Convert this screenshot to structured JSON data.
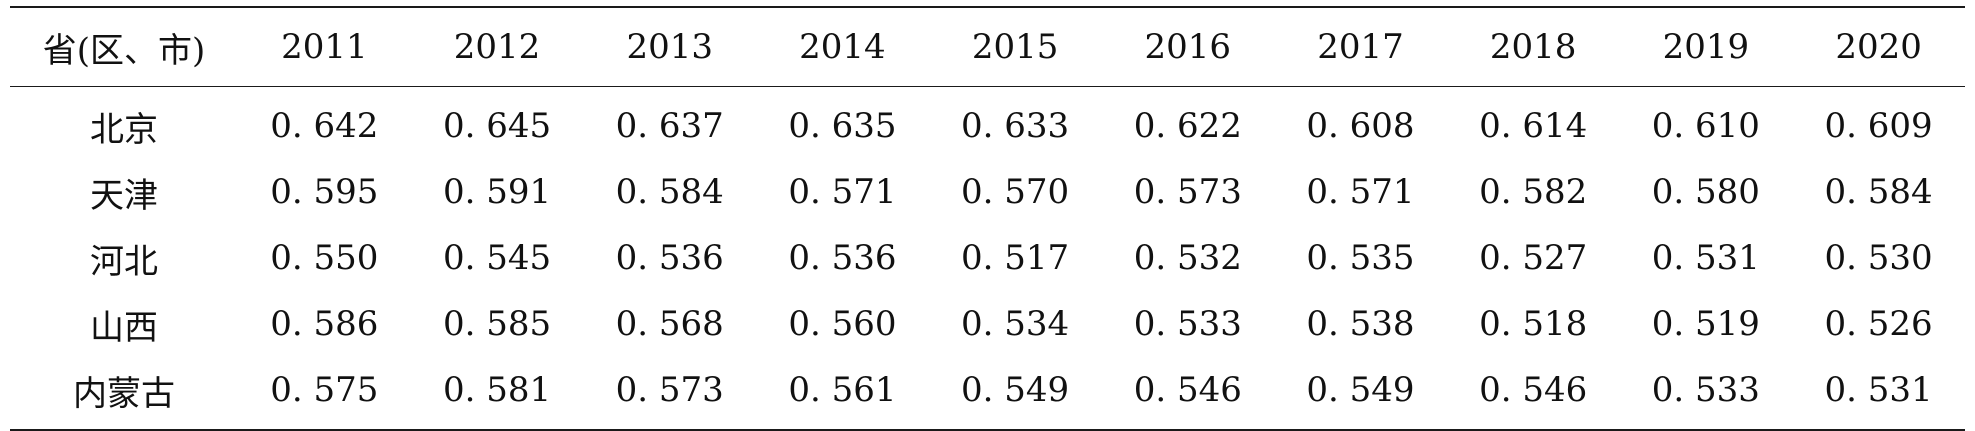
{
  "table": {
    "header": [
      "省(区、市)",
      "2011",
      "2012",
      "2013",
      "2014",
      "2015",
      "2016",
      "2017",
      "2018",
      "2019",
      "2020"
    ],
    "rows": [
      {
        "region": "北京",
        "values": [
          "0. 642",
          "0. 645",
          "0. 637",
          "0. 635",
          "0. 633",
          "0. 622",
          "0. 608",
          "0. 614",
          "0. 610",
          "0. 609"
        ]
      },
      {
        "region": "天津",
        "values": [
          "0. 595",
          "0. 591",
          "0. 584",
          "0. 571",
          "0. 570",
          "0. 573",
          "0. 571",
          "0. 582",
          "0. 580",
          "0. 584"
        ]
      },
      {
        "region": "河北",
        "values": [
          "0. 550",
          "0. 545",
          "0. 536",
          "0. 536",
          "0. 517",
          "0. 532",
          "0. 535",
          "0. 527",
          "0. 531",
          "0. 530"
        ]
      },
      {
        "region": "山西",
        "values": [
          "0. 586",
          "0. 585",
          "0. 568",
          "0. 560",
          "0. 534",
          "0. 533",
          "0. 538",
          "0. 518",
          "0. 519",
          "0. 526"
        ]
      },
      {
        "region": "内蒙古",
        "values": [
          "0. 575",
          "0. 581",
          "0. 573",
          "0. 561",
          "0. 549",
          "0. 546",
          "0. 549",
          "0. 546",
          "0. 533",
          "0. 531"
        ]
      }
    ]
  }
}
